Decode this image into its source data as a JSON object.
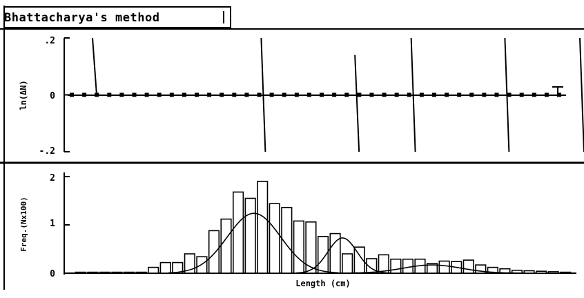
{
  "window": {
    "title": "Bhattacharya's method"
  },
  "top_panel": {
    "ylabel": "ln(ΔN)",
    "ytick_labels": [
      ".2",
      "0",
      "-.2"
    ]
  },
  "bottom_panel": {
    "ylabel": "Freq.(Nx100)",
    "xlabel": "Length (cm)",
    "ytick_labels": [
      "2",
      "1",
      "0"
    ]
  },
  "chart_data": [
    {
      "type": "scatter",
      "title": "",
      "ylabel": "ln(ΔN)",
      "ylim": [
        -0.2,
        0.2
      ],
      "zero_line": true,
      "dot_count": 40,
      "vertical_segments": [
        {
          "x_index": 0,
          "y_top": 0.2,
          "y_bottom": 0.0
        },
        {
          "x_index": 9,
          "y_top": 0.2,
          "y_bottom": -0.2
        },
        {
          "x_index": 14,
          "y_top": 0.14,
          "y_bottom": -0.2
        },
        {
          "x_index": 17,
          "y_top": 0.2,
          "y_bottom": -0.2
        },
        {
          "x_index": 22,
          "y_top": 0.2,
          "y_bottom": -0.2
        },
        {
          "x_index": 26,
          "y_top": 0.2,
          "y_bottom": -0.2
        }
      ]
    },
    {
      "type": "bar",
      "title": "",
      "xlabel": "Length (cm)",
      "ylabel": "Freq.(Nx100)",
      "ylim": [
        0,
        2
      ],
      "values": [
        0.02,
        0.02,
        0.02,
        0.02,
        0.02,
        0.02,
        0.12,
        0.22,
        0.22,
        0.4,
        0.34,
        0.88,
        1.12,
        1.68,
        1.55,
        1.9,
        1.44,
        1.36,
        1.08,
        1.06,
        0.76,
        0.82,
        0.4,
        0.54,
        0.3,
        0.38,
        0.29,
        0.29,
        0.29,
        0.2,
        0.25,
        0.24,
        0.27,
        0.17,
        0.12,
        0.09,
        0.06,
        0.05,
        0.04,
        0.03,
        0.02
      ],
      "curves": [
        {
          "mean_index": 14.3,
          "sd_index": 2.2,
          "peak": 1.24
        },
        {
          "mean_index": 21.6,
          "sd_index": 1.2,
          "peak": 0.73
        },
        {
          "mean_index": 29.0,
          "sd_index": 2.4,
          "peak": 0.17
        }
      ]
    }
  ]
}
